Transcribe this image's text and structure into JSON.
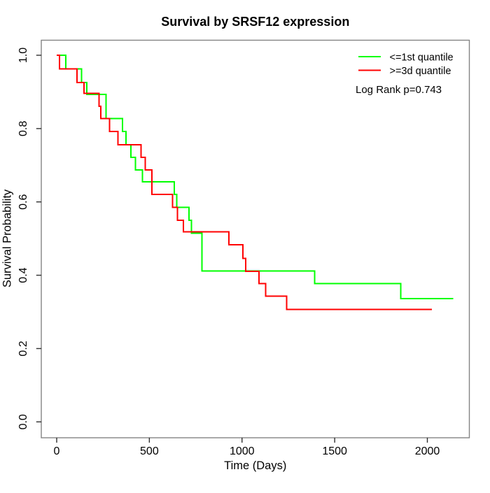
{
  "title": "Survival by SRSF12 expression",
  "chart_data": {
    "type": "line",
    "subtype": "kaplan-meier-step",
    "title": "Survival by SRSF12 expression",
    "xlabel": "Time (Days)",
    "ylabel": "Survival Probability",
    "xlim": [
      0,
      2200
    ],
    "ylim": [
      0.0,
      1.0
    ],
    "x_ticks": [
      "0",
      "500",
      "1000",
      "1500",
      "2000"
    ],
    "y_ticks": [
      "0.0",
      "0.2",
      "0.4",
      "0.6",
      "0.8",
      "1.0"
    ],
    "grid": false,
    "legend_position": "top-right",
    "annotation": "Log Rank p=0.743",
    "series": [
      {
        "name": "<=1st quantile",
        "color": "#00ff00",
        "steps": [
          [
            0,
            1.0
          ],
          [
            50,
            0.963
          ],
          [
            135,
            0.926
          ],
          [
            163,
            0.893
          ],
          [
            267,
            0.827
          ],
          [
            355,
            0.792
          ],
          [
            374,
            0.756
          ],
          [
            400,
            0.722
          ],
          [
            425,
            0.687
          ],
          [
            462,
            0.655
          ],
          [
            635,
            0.62
          ],
          [
            648,
            0.585
          ],
          [
            714,
            0.55
          ],
          [
            727,
            0.515
          ],
          [
            783,
            0.412
          ],
          [
            1392,
            0.377
          ],
          [
            1857,
            0.336
          ]
        ],
        "end_time": 2140
      },
      {
        "name": ">=3d quantile",
        "color": "#ff0000",
        "steps": [
          [
            0,
            1.0
          ],
          [
            15,
            0.963
          ],
          [
            110,
            0.926
          ],
          [
            148,
            0.896
          ],
          [
            229,
            0.861
          ],
          [
            238,
            0.827
          ],
          [
            286,
            0.792
          ],
          [
            330,
            0.756
          ],
          [
            456,
            0.722
          ],
          [
            477,
            0.687
          ],
          [
            513,
            0.62
          ],
          [
            626,
            0.585
          ],
          [
            651,
            0.55
          ],
          [
            683,
            0.518
          ],
          [
            929,
            0.483
          ],
          [
            1004,
            0.446
          ],
          [
            1019,
            0.411
          ],
          [
            1092,
            0.377
          ],
          [
            1127,
            0.343
          ],
          [
            1240,
            0.307
          ]
        ],
        "end_time": 2025
      }
    ]
  },
  "legend": {
    "entries": [
      {
        "label": "<=1st quantile",
        "color": "#00ff00"
      },
      {
        "label": ">=3d quantile",
        "color": "#ff0000"
      }
    ],
    "note": "Log Rank p=0.743"
  },
  "colors": {
    "curve_green": "#00ff00",
    "curve_red": "#ff0000",
    "box": "#848484",
    "tick": "#303030",
    "text": "#000000",
    "background": "#ffffff"
  }
}
